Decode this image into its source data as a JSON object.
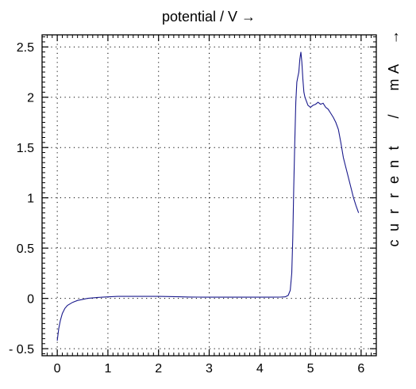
{
  "chart_data": {
    "type": "line",
    "title": "potential / V →",
    "xlabel": "",
    "ylabel": "current / mA →",
    "xlim": [
      -0.3,
      6.3
    ],
    "ylim": [
      -0.57,
      2.62
    ],
    "xticks": [
      0,
      1,
      2,
      3,
      4,
      5,
      6
    ],
    "xtick_labels": [
      "0",
      "1",
      "2",
      "3",
      "4",
      "5",
      "6"
    ],
    "yticks": [
      -0.5,
      0,
      0.5,
      1,
      1.5,
      2,
      2.5
    ],
    "ytick_labels": [
      "- 0.5",
      "0",
      "0.5",
      "1",
      "1.5",
      "2",
      "2.5"
    ],
    "grid": true,
    "line_color": "#1a1a8c",
    "series": [
      {
        "x": [
          0.0,
          0.03,
          0.06,
          0.1,
          0.15,
          0.2,
          0.3,
          0.4,
          0.5,
          0.6,
          0.8,
          1.0,
          1.2,
          1.4,
          1.6,
          1.8,
          2.0,
          2.2,
          2.4,
          2.6,
          2.8,
          3.0,
          3.2,
          3.4,
          3.6,
          3.8,
          4.0,
          4.2,
          4.4,
          4.5,
          4.56,
          4.6,
          4.63,
          4.65,
          4.67,
          4.69,
          4.71,
          4.73,
          4.75,
          4.77,
          4.79,
          4.81,
          4.83,
          4.85,
          4.87,
          4.89,
          4.92,
          4.95,
          5.0,
          5.05,
          5.1,
          5.15,
          5.2,
          5.25,
          5.3,
          5.35,
          5.4,
          5.45,
          5.5,
          5.55,
          5.6,
          5.65,
          5.7,
          5.75,
          5.8,
          5.85,
          5.9,
          5.95
        ],
        "y": [
          -0.42,
          -0.3,
          -0.22,
          -0.15,
          -0.1,
          -0.07,
          -0.04,
          -0.02,
          -0.01,
          0.0,
          0.01,
          0.015,
          0.02,
          0.02,
          0.02,
          0.02,
          0.02,
          0.018,
          0.016,
          0.014,
          0.013,
          0.012,
          0.012,
          0.012,
          0.012,
          0.012,
          0.012,
          0.012,
          0.013,
          0.015,
          0.03,
          0.08,
          0.25,
          0.6,
          1.1,
          1.55,
          1.95,
          2.15,
          2.2,
          2.25,
          2.38,
          2.45,
          2.35,
          2.18,
          2.05,
          2.0,
          1.96,
          1.92,
          1.9,
          1.92,
          1.93,
          1.95,
          1.93,
          1.94,
          1.9,
          1.88,
          1.84,
          1.8,
          1.75,
          1.68,
          1.55,
          1.4,
          1.3,
          1.2,
          1.1,
          1.0,
          0.92,
          0.85
        ]
      }
    ]
  }
}
